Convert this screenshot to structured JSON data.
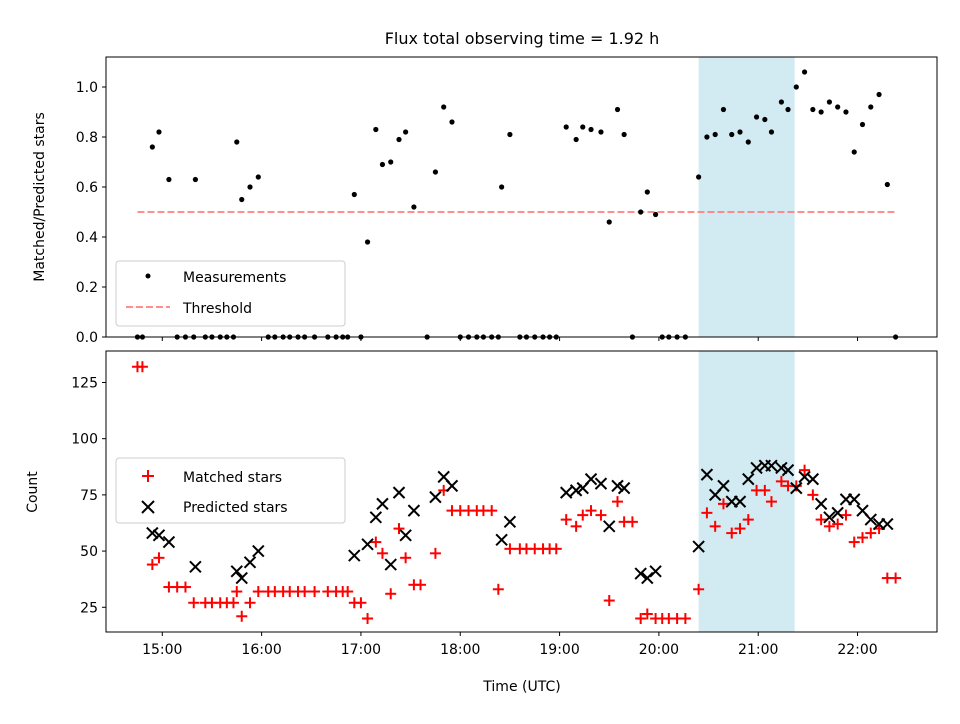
{
  "chart_data": [
    {
      "type": "scatter",
      "title": "Flux total observing time = 1.92 h",
      "xlabel": "",
      "ylabel": "Matched/Predicted stars",
      "xlim": [
        "14:26",
        "22:48"
      ],
      "ylim": [
        0,
        1.12
      ],
      "yticks": [
        "0.0",
        "0.2",
        "0.4",
        "0.6",
        "0.8",
        "1.0"
      ],
      "shaded_interval": [
        "20:24",
        "21:22"
      ],
      "shade_color": "#add8e6",
      "legend_position": "lower-left",
      "legend": [
        "Measurements",
        "Threshold"
      ],
      "threshold": {
        "name": "Threshold",
        "value": 0.5,
        "x": [
          "14:45",
          "22:24"
        ],
        "color": "#ff7f7f"
      },
      "series": [
        {
          "name": "Measurements",
          "color": "#000000",
          "marker": "dot",
          "points": [
            [
              "14:45",
              0
            ],
            [
              "14:48",
              0
            ],
            [
              "14:54",
              0.76
            ],
            [
              "14:58",
              0.82
            ],
            [
              "15:04",
              0.63
            ],
            [
              "15:09",
              0
            ],
            [
              "15:14",
              0
            ],
            [
              "15:19",
              0
            ],
            [
              "15:20",
              0.63
            ],
            [
              "15:26",
              0
            ],
            [
              "15:30",
              0
            ],
            [
              "15:35",
              0
            ],
            [
              "15:39",
              0
            ],
            [
              "15:43",
              0
            ],
            [
              "15:45",
              0.78
            ],
            [
              "15:48",
              0.55
            ],
            [
              "15:53",
              0.6
            ],
            [
              "15:58",
              0.64
            ],
            [
              "16:04",
              0
            ],
            [
              "16:08",
              0
            ],
            [
              "16:13",
              0
            ],
            [
              "16:17",
              0
            ],
            [
              "16:22",
              0
            ],
            [
              "16:26",
              0
            ],
            [
              "16:32",
              0
            ],
            [
              "16:40",
              0
            ],
            [
              "16:45",
              0
            ],
            [
              "16:49",
              0
            ],
            [
              "16:52",
              0
            ],
            [
              "16:56",
              0.57
            ],
            [
              "17:00",
              0
            ],
            [
              "17:04",
              0.38
            ],
            [
              "17:09",
              0.83
            ],
            [
              "17:13",
              0.69
            ],
            [
              "17:18",
              0.7
            ],
            [
              "17:23",
              0.79
            ],
            [
              "17:27",
              0.82
            ],
            [
              "17:32",
              0.52
            ],
            [
              "17:40",
              0
            ],
            [
              "17:45",
              0.66
            ],
            [
              "17:50",
              0.92
            ],
            [
              "17:55",
              0.86
            ],
            [
              "18:00",
              0
            ],
            [
              "18:05",
              0
            ],
            [
              "18:10",
              0
            ],
            [
              "18:14",
              0
            ],
            [
              "18:19",
              0
            ],
            [
              "18:23",
              0
            ],
            [
              "18:25",
              0.6
            ],
            [
              "18:30",
              0.81
            ],
            [
              "18:36",
              0
            ],
            [
              "18:40",
              0
            ],
            [
              "18:45",
              0
            ],
            [
              "18:50",
              0
            ],
            [
              "18:54",
              0
            ],
            [
              "18:58",
              0
            ],
            [
              "19:04",
              0.84
            ],
            [
              "19:10",
              0.79
            ],
            [
              "19:14",
              0.84
            ],
            [
              "19:19",
              0.83
            ],
            [
              "19:25",
              0.82
            ],
            [
              "19:30",
              0.46
            ],
            [
              "19:35",
              0.91
            ],
            [
              "19:39",
              0.81
            ],
            [
              "19:44",
              0
            ],
            [
              "19:49",
              0.5
            ],
            [
              "19:53",
              0.58
            ],
            [
              "19:58",
              0.49
            ],
            [
              "20:02",
              0
            ],
            [
              "20:06",
              0
            ],
            [
              "20:11",
              0
            ],
            [
              "20:16",
              0
            ],
            [
              "20:24",
              0.64
            ],
            [
              "20:29",
              0.8
            ],
            [
              "20:34",
              0.81
            ],
            [
              "20:39",
              0.91
            ],
            [
              "20:44",
              0.81
            ],
            [
              "20:49",
              0.82
            ],
            [
              "20:54",
              0.78
            ],
            [
              "20:59",
              0.88
            ],
            [
              "21:04",
              0.87
            ],
            [
              "21:08",
              0.82
            ],
            [
              "21:14",
              0.94
            ],
            [
              "21:18",
              0.91
            ],
            [
              "21:23",
              1.0
            ],
            [
              "21:28",
              1.06
            ],
            [
              "21:33",
              0.91
            ],
            [
              "21:38",
              0.9
            ],
            [
              "21:43",
              0.94
            ],
            [
              "21:48",
              0.92
            ],
            [
              "21:53",
              0.9
            ],
            [
              "21:58",
              0.74
            ],
            [
              "22:03",
              0.85
            ],
            [
              "22:08",
              0.92
            ],
            [
              "22:13",
              0.97
            ],
            [
              "22:18",
              0.61
            ],
            [
              "22:23",
              0
            ]
          ]
        }
      ]
    },
    {
      "type": "scatter",
      "title": "",
      "xlabel": "Time (UTC)",
      "ylabel": "Count",
      "xlim": [
        "14:26",
        "22:48"
      ],
      "ylim": [
        14,
        139
      ],
      "yticks": [
        "25",
        "50",
        "75",
        "100",
        "125"
      ],
      "xticks": [
        "15:00",
        "16:00",
        "17:00",
        "18:00",
        "19:00",
        "20:00",
        "21:00",
        "22:00"
      ],
      "shaded_interval": [
        "20:24",
        "21:22"
      ],
      "shade_color": "#add8e6",
      "legend_position": "center-left",
      "legend": [
        "Matched stars",
        "Predicted stars"
      ],
      "series": [
        {
          "name": "Matched stars",
          "color": "#ff0000",
          "marker": "plus",
          "points": [
            [
              "14:45",
              132
            ],
            [
              "14:48",
              132
            ],
            [
              "14:54",
              44
            ],
            [
              "14:58",
              47
            ],
            [
              "15:04",
              34
            ],
            [
              "15:09",
              34
            ],
            [
              "15:14",
              34
            ],
            [
              "15:19",
              27
            ],
            [
              "15:26",
              27
            ],
            [
              "15:30",
              27
            ],
            [
              "15:35",
              27
            ],
            [
              "15:39",
              27
            ],
            [
              "15:43",
              27
            ],
            [
              "15:45",
              32
            ],
            [
              "15:48",
              21
            ],
            [
              "15:53",
              27
            ],
            [
              "15:58",
              32
            ],
            [
              "16:04",
              32
            ],
            [
              "16:08",
              32
            ],
            [
              "16:13",
              32
            ],
            [
              "16:17",
              32
            ],
            [
              "16:22",
              32
            ],
            [
              "16:26",
              32
            ],
            [
              "16:32",
              32
            ],
            [
              "16:40",
              32
            ],
            [
              "16:45",
              32
            ],
            [
              "16:49",
              32
            ],
            [
              "16:52",
              32
            ],
            [
              "16:56",
              27
            ],
            [
              "17:00",
              27
            ],
            [
              "17:04",
              20
            ],
            [
              "17:09",
              54
            ],
            [
              "17:13",
              49
            ],
            [
              "17:18",
              31
            ],
            [
              "17:23",
              60
            ],
            [
              "17:27",
              47
            ],
            [
              "17:32",
              35
            ],
            [
              "17:36",
              35
            ],
            [
              "17:45",
              49
            ],
            [
              "17:50",
              77
            ],
            [
              "17:55",
              68
            ],
            [
              "18:00",
              68
            ],
            [
              "18:05",
              68
            ],
            [
              "18:10",
              68
            ],
            [
              "18:14",
              68
            ],
            [
              "18:19",
              68
            ],
            [
              "18:23",
              33
            ],
            [
              "18:30",
              51
            ],
            [
              "18:36",
              51
            ],
            [
              "18:40",
              51
            ],
            [
              "18:45",
              51
            ],
            [
              "18:50",
              51
            ],
            [
              "18:54",
              51
            ],
            [
              "18:58",
              51
            ],
            [
              "19:04",
              64
            ],
            [
              "19:10",
              61
            ],
            [
              "19:14",
              66
            ],
            [
              "19:19",
              68
            ],
            [
              "19:25",
              66
            ],
            [
              "19:30",
              28
            ],
            [
              "19:35",
              72
            ],
            [
              "19:39",
              63
            ],
            [
              "19:44",
              63
            ],
            [
              "19:49",
              20
            ],
            [
              "19:53",
              22
            ],
            [
              "19:58",
              20
            ],
            [
              "20:02",
              20
            ],
            [
              "20:06",
              20
            ],
            [
              "20:11",
              20
            ],
            [
              "20:16",
              20
            ],
            [
              "20:24",
              33
            ],
            [
              "20:29",
              67
            ],
            [
              "20:34",
              61
            ],
            [
              "20:39",
              71
            ],
            [
              "20:44",
              58
            ],
            [
              "20:49",
              60
            ],
            [
              "20:54",
              64
            ],
            [
              "20:59",
              77
            ],
            [
              "21:04",
              77
            ],
            [
              "21:08",
              72
            ],
            [
              "21:14",
              81
            ],
            [
              "21:18",
              79
            ],
            [
              "21:23",
              79
            ],
            [
              "21:28",
              86
            ],
            [
              "21:33",
              75
            ],
            [
              "21:38",
              64
            ],
            [
              "21:43",
              61
            ],
            [
              "21:48",
              62
            ],
            [
              "21:53",
              66
            ],
            [
              "21:58",
              54
            ],
            [
              "22:03",
              56
            ],
            [
              "22:08",
              58
            ],
            [
              "22:13",
              60
            ],
            [
              "22:18",
              38
            ],
            [
              "22:23",
              38
            ]
          ]
        },
        {
          "name": "Predicted stars",
          "color": "#000000",
          "marker": "x",
          "points": [
            [
              "14:54",
              58
            ],
            [
              "14:58",
              57
            ],
            [
              "15:04",
              54
            ],
            [
              "15:20",
              43
            ],
            [
              "15:45",
              41
            ],
            [
              "15:48",
              38
            ],
            [
              "15:53",
              45
            ],
            [
              "15:58",
              50
            ],
            [
              "16:56",
              48
            ],
            [
              "17:04",
              53
            ],
            [
              "17:09",
              65
            ],
            [
              "17:13",
              71
            ],
            [
              "17:18",
              44
            ],
            [
              "17:23",
              76
            ],
            [
              "17:27",
              57
            ],
            [
              "17:32",
              68
            ],
            [
              "17:45",
              74
            ],
            [
              "17:50",
              83
            ],
            [
              "17:55",
              79
            ],
            [
              "18:25",
              55
            ],
            [
              "18:30",
              63
            ],
            [
              "19:04",
              76
            ],
            [
              "19:10",
              77
            ],
            [
              "19:14",
              78
            ],
            [
              "19:19",
              82
            ],
            [
              "19:25",
              80
            ],
            [
              "19:30",
              61
            ],
            [
              "19:35",
              79
            ],
            [
              "19:39",
              78
            ],
            [
              "19:49",
              40
            ],
            [
              "19:53",
              38
            ],
            [
              "19:58",
              41
            ],
            [
              "20:24",
              52
            ],
            [
              "20:29",
              84
            ],
            [
              "20:34",
              75
            ],
            [
              "20:39",
              79
            ],
            [
              "20:44",
              72
            ],
            [
              "20:49",
              72
            ],
            [
              "20:54",
              82
            ],
            [
              "20:59",
              87
            ],
            [
              "21:04",
              88
            ],
            [
              "21:08",
              88
            ],
            [
              "21:14",
              87
            ],
            [
              "21:18",
              86
            ],
            [
              "21:23",
              78
            ],
            [
              "21:28",
              83
            ],
            [
              "21:33",
              82
            ],
            [
              "21:38",
              71
            ],
            [
              "21:43",
              65
            ],
            [
              "21:48",
              67
            ],
            [
              "21:53",
              73
            ],
            [
              "21:58",
              73
            ],
            [
              "22:03",
              68
            ],
            [
              "22:08",
              64
            ],
            [
              "22:13",
              62
            ],
            [
              "22:18",
              62
            ]
          ]
        }
      ]
    }
  ]
}
